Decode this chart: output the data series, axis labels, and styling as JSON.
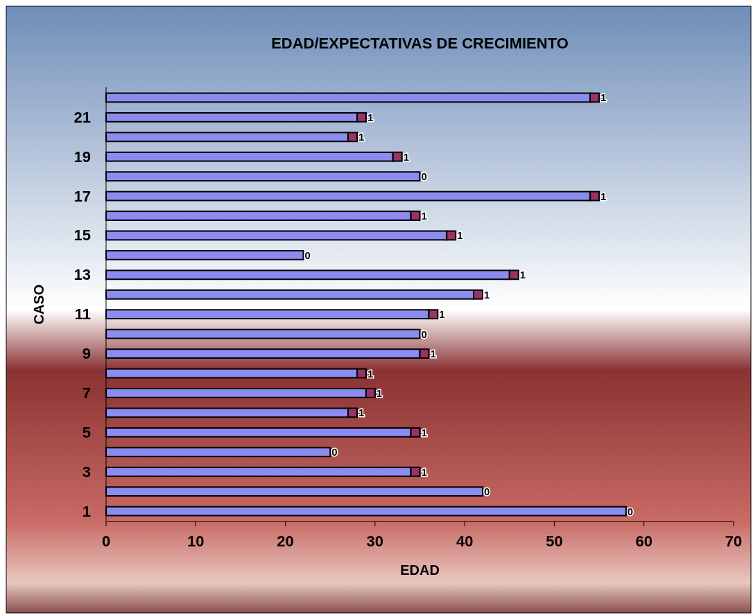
{
  "chart_data": {
    "type": "bar",
    "orientation": "horizontal",
    "stacked": true,
    "title": "EDAD/EXPECTATIVAS DE CRECIMIENTO",
    "xlabel": "EDAD",
    "ylabel": "CASO",
    "categories": [
      null,
      "21",
      null,
      "19",
      null,
      "17",
      null,
      "15",
      null,
      "13",
      null,
      "11",
      null,
      "9",
      null,
      "7",
      null,
      "5",
      null,
      "3",
      null,
      "1"
    ],
    "series": [
      {
        "color": "#8c8cf0",
        "values": [
          54,
          28,
          27,
          32,
          35,
          54,
          34,
          38,
          22,
          45,
          41,
          36,
          35,
          35,
          28,
          29,
          27,
          34,
          25,
          34,
          42,
          58
        ]
      },
      {
        "color": "#993366",
        "values": [
          1,
          1,
          1,
          1,
          0,
          1,
          1,
          1,
          0,
          1,
          1,
          1,
          0,
          1,
          1,
          1,
          1,
          1,
          0,
          1,
          0,
          0
        ],
        "value_labels": [
          "1",
          "1",
          "1",
          "1",
          "0",
          "1",
          "1",
          "1",
          "0",
          "1",
          "1",
          "1",
          "0",
          "1",
          "1",
          "1",
          "1",
          "1",
          "0",
          "1",
          "0",
          "0"
        ]
      }
    ],
    "xlim": [
      0,
      70
    ],
    "xticks": [
      0,
      10,
      20,
      30,
      40,
      50,
      60,
      70
    ],
    "grid": false
  }
}
